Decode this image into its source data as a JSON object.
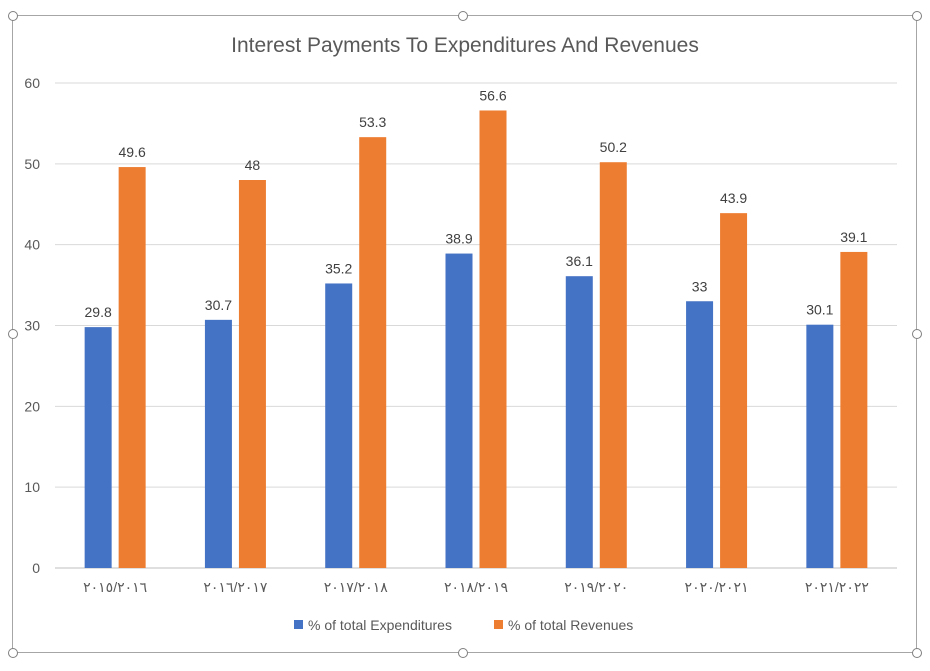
{
  "chart_data": {
    "type": "bar",
    "title": "Interest Payments To Expenditures And Revenues",
    "xlabel": "",
    "ylabel": "",
    "categories": [
      "٢٠١٥/٢٠١٦",
      "٢٠١٦/٢٠١٧",
      "٢٠١٧/٢٠١٨",
      "٢٠١٨/٢٠١٩",
      "٢٠١٩/٢٠٢٠",
      "٢٠٢٠/٢٠٢١",
      "٢٠٢١/٢٠٢٢"
    ],
    "series": [
      {
        "name": "% of total Expenditures",
        "color": "#4472c4",
        "values": [
          29.8,
          30.7,
          35.2,
          38.9,
          36.1,
          33,
          30.1
        ]
      },
      {
        "name": "% of total Revenues",
        "color": "#ed7d31",
        "values": [
          49.6,
          48,
          53.3,
          56.6,
          50.2,
          43.9,
          39.1
        ]
      }
    ],
    "ylim": [
      0,
      60
    ],
    "yticks": [
      0,
      10,
      20,
      30,
      40,
      50,
      60
    ],
    "grid": true,
    "legend_position": "bottom",
    "data_labels": true
  }
}
